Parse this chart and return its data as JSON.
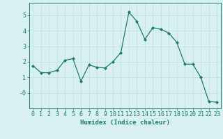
{
  "x": [
    0,
    1,
    2,
    3,
    4,
    5,
    6,
    7,
    8,
    9,
    10,
    11,
    12,
    13,
    14,
    15,
    16,
    17,
    18,
    19,
    20,
    21,
    22,
    23
  ],
  "y": [
    1.75,
    1.3,
    1.3,
    1.45,
    2.1,
    2.2,
    0.75,
    1.8,
    1.65,
    1.6,
    2.0,
    2.6,
    5.2,
    4.6,
    3.45,
    4.2,
    4.1,
    3.85,
    3.25,
    1.85,
    1.85,
    1.0,
    -0.55,
    -0.6
  ],
  "line_color": "#1a7a6e",
  "marker": "D",
  "marker_size": 2.0,
  "bg_color": "#d8f0f0",
  "grid_color": "#c0dede",
  "xlabel": "Humidex (Indice chaleur)",
  "ylim": [
    -1.0,
    5.8
  ],
  "xlim": [
    -0.5,
    23.5
  ],
  "xticks": [
    0,
    1,
    2,
    3,
    4,
    5,
    6,
    7,
    8,
    9,
    10,
    11,
    12,
    13,
    14,
    15,
    16,
    17,
    18,
    19,
    20,
    21,
    22,
    23
  ],
  "yticks": [
    0,
    1,
    2,
    3,
    4,
    5
  ],
  "ytick_labels": [
    "-0",
    "1",
    "2",
    "3",
    "4",
    "5"
  ],
  "axis_color": "#1a7a6e",
  "tick_color": "#1a7a6e",
  "label_fontsize": 6.5,
  "tick_fontsize": 6.0,
  "linewidth": 0.9
}
